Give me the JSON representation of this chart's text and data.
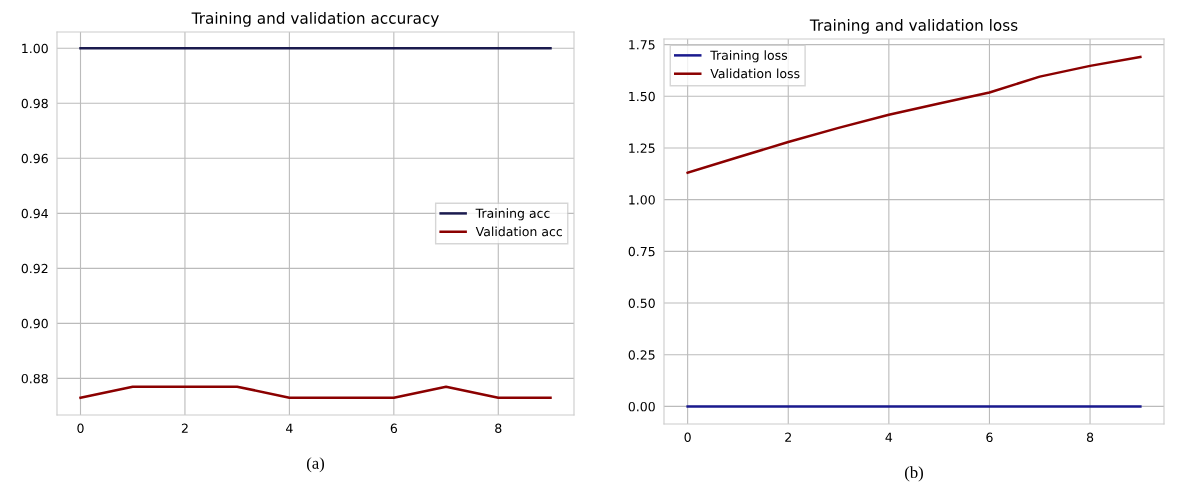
{
  "chart_data": [
    {
      "type": "line",
      "title": "Training and validation accuracy",
      "x": [
        0,
        1,
        2,
        3,
        4,
        5,
        6,
        7,
        8,
        9
      ],
      "series": [
        {
          "name": "Training acc",
          "color": "#1a1a4e",
          "values": [
            1.0,
            1.0,
            1.0,
            1.0,
            1.0,
            1.0,
            1.0,
            1.0,
            1.0,
            1.0
          ]
        },
        {
          "name": "Validation acc",
          "color": "#8b0000",
          "values": [
            0.873,
            0.877,
            0.877,
            0.877,
            0.873,
            0.873,
            0.873,
            0.877,
            0.873,
            0.873
          ]
        }
      ],
      "xlim": [
        -0.45,
        9.45
      ],
      "xticks": [
        0,
        2,
        4,
        6,
        8
      ],
      "ylim": [
        0.8667,
        1.0059
      ],
      "yticks": [
        0.88,
        {
          "value": 0.9,
          "label": "0.90"
        },
        0.92,
        0.94,
        0.96,
        0.98,
        {
          "value": 1.0,
          "label": "1.00"
        }
      ],
      "grid": true,
      "legend": "right",
      "annotations": [
        "(a)"
      ]
    },
    {
      "type": "line",
      "title": "Training and validation loss",
      "x": [
        0,
        1,
        2,
        3,
        4,
        5,
        6,
        7,
        8,
        9
      ],
      "series": [
        {
          "name": "Training loss",
          "color": "#1a1a8e",
          "values": [
            0,
            0,
            0,
            0,
            0,
            0,
            0,
            0,
            0,
            0
          ]
        },
        {
          "name": "Validation loss",
          "color": "#8b0000",
          "values": [
            1.13,
            1.205,
            1.279,
            1.347,
            1.411,
            1.465,
            1.518,
            1.595,
            1.647,
            1.69
          ]
        }
      ],
      "xlim": [
        -0.47,
        9.47
      ],
      "xticks": [
        0,
        2,
        4,
        6,
        8
      ],
      "ylim": [
        -0.085,
        1.777
      ],
      "yticks": [
        {
          "value": 0,
          "label": "0.00"
        },
        0.25,
        {
          "value": 0.5,
          "label": "0.50"
        },
        0.75,
        {
          "value": 1.0,
          "label": "1.00"
        },
        1.25,
        {
          "value": 1.5,
          "label": "1.50"
        },
        1.75
      ],
      "grid": true,
      "legend": "top left",
      "annotations": [
        "(b)"
      ]
    }
  ]
}
